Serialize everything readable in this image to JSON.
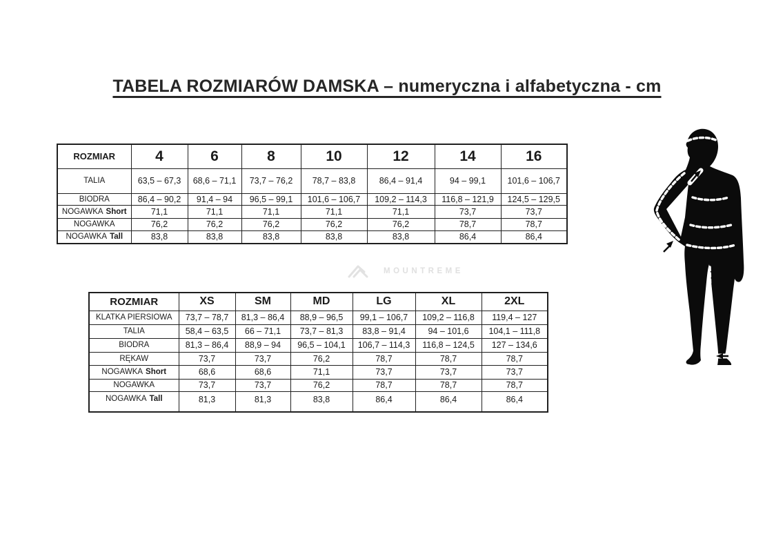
{
  "title": "TABELA ROZMIARÓW DAMSKA – numeryczna i alfabetyczna - cm",
  "watermark": {
    "brand": "MOUNTREME",
    "icon": "mountain-logo",
    "color": "#e0e0e0"
  },
  "silhouette": {
    "description": "woman-body-measurement-figure",
    "measurement_lines": [
      "head",
      "chest",
      "waist",
      "hips",
      "arm-length",
      "inseam"
    ]
  },
  "tables": [
    {
      "name": "numeric-sizes",
      "header": [
        "ROZMIAR",
        "4",
        "6",
        "8",
        "10",
        "12",
        "14",
        "16"
      ],
      "rows": [
        {
          "label": "TALIA",
          "values": [
            "63,5 – 67,3",
            "68,6 – 71,1",
            "73,7 – 76,2",
            "78,7 – 83,8",
            "86,4 – 91,4",
            "94 – 99,1",
            "101,6 – 106,7"
          ]
        },
        {
          "label": "BIODRA",
          "values": [
            "86,4 – 90,2",
            "91,4 – 94",
            "96,5 – 99,1",
            "101,6 – 106,7",
            "109,2 – 114,3",
            "116,8 – 121,9",
            "124,5 – 129,5"
          ]
        },
        {
          "label": "NOGAWKA",
          "label_suffix": "Short",
          "values": [
            "71,1",
            "71,1",
            "71,1",
            "71,1",
            "71,1",
            "73,7",
            "73,7"
          ]
        },
        {
          "label": "NOGAWKA",
          "values": [
            "76,2",
            "76,2",
            "76,2",
            "76,2",
            "76,2",
            "78,7",
            "78,7"
          ]
        },
        {
          "label": "NOGAWKA",
          "label_suffix": "Tall",
          "values": [
            "83,8",
            "83,8",
            "83,8",
            "83,8",
            "83,8",
            "86,4",
            "86,4"
          ]
        }
      ]
    },
    {
      "name": "alphabetic-sizes",
      "header": [
        "ROZMIAR",
        "XS",
        "SM",
        "MD",
        "LG",
        "XL",
        "2XL"
      ],
      "rows": [
        {
          "label": "KLATKA PIERSIOWA",
          "values": [
            "73,7 – 78,7",
            "81,3 – 86,4",
            "88,9 – 96,5",
            "99,1 – 106,7",
            "109,2 – 116,8",
            "119,4 – 127"
          ]
        },
        {
          "label": "TALIA",
          "values": [
            "58,4 – 63,5",
            "66 – 71,1",
            "73,7 – 81,3",
            "83,8 – 91,4",
            "94 – 101,6",
            "104,1 – 111,8"
          ]
        },
        {
          "label": "BIODRA",
          "values": [
            "81,3 – 86,4",
            "88,9 – 94",
            "96,5 – 104,1",
            "106,7 – 114,3",
            "116,8 – 124,5",
            "127 – 134,6"
          ]
        },
        {
          "label": "RĘKAW",
          "values": [
            "73,7",
            "73,7",
            "76,2",
            "78,7",
            "78,7",
            "78,7"
          ]
        },
        {
          "label": "NOGAWKA",
          "label_suffix": "Short",
          "values": [
            "68,6",
            "68,6",
            "71,1",
            "73,7",
            "73,7",
            "73,7"
          ]
        },
        {
          "label": "NOGAWKA",
          "values": [
            "73,7",
            "73,7",
            "76,2",
            "78,7",
            "78,7",
            "78,7"
          ]
        },
        {
          "label": "NOGAWKA",
          "label_suffix": "Tall",
          "values": [
            "81,3",
            "81,3",
            "83,8",
            "86,4",
            "86,4",
            "86,4"
          ]
        }
      ]
    }
  ]
}
